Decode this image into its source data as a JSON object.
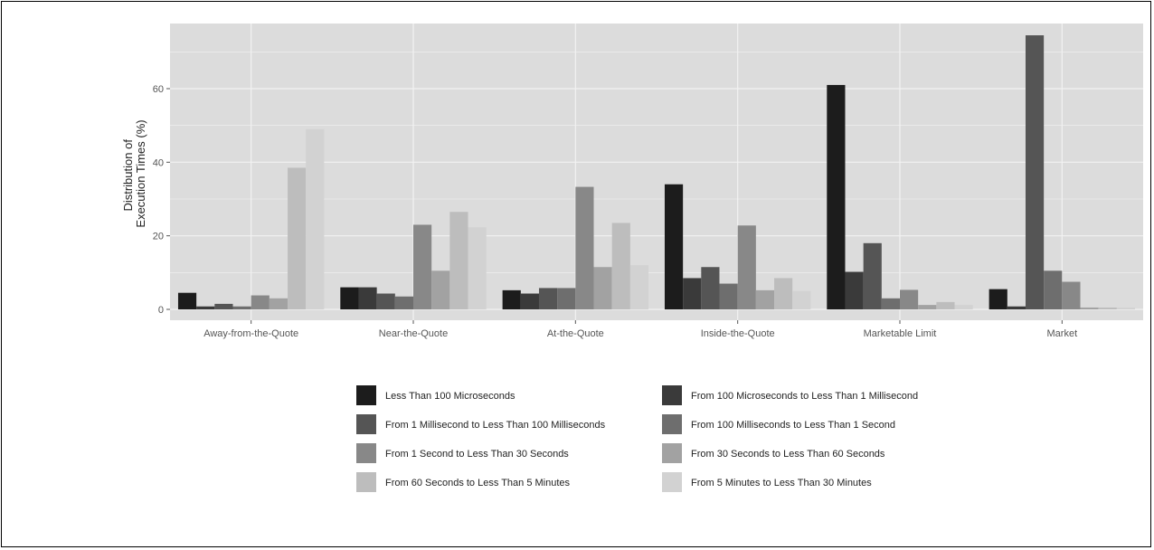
{
  "chart_data": {
    "type": "bar",
    "title": "",
    "ylabel_lines": [
      "Distribution of",
      "Execution Times (%)"
    ],
    "xlabel": "",
    "ylim": [
      0,
      80
    ],
    "yticks": [
      0,
      20,
      40,
      60
    ],
    "grid": true,
    "legend_position": "bottom",
    "categories": [
      "Away-from-the-Quote",
      "Near-the-Quote",
      "At-the-Quote",
      "Inside-the-Quote",
      "Marketable Limit",
      "Market"
    ],
    "series": [
      {
        "name": "Less Than 100 Microseconds",
        "color": "#1c1c1c",
        "values": [
          4.5,
          6.0,
          5.2,
          34.0,
          61.0,
          5.5
        ]
      },
      {
        "name": "From 100 Microseconds to Less Than 1 Millisecond",
        "color": "#3a3a3a",
        "values": [
          0.8,
          6.0,
          4.3,
          8.5,
          10.2,
          0.8
        ]
      },
      {
        "name": "From 1 Millisecond to Less Than 100 Milliseconds",
        "color": "#555555",
        "values": [
          1.5,
          4.3,
          5.8,
          11.5,
          18.0,
          74.5
        ]
      },
      {
        "name": "From 100 Milliseconds to Less Than 1 Second",
        "color": "#6e6e6e",
        "values": [
          0.8,
          3.5,
          5.8,
          7.0,
          3.0,
          10.5
        ]
      },
      {
        "name": "From 1 Second to Less Than 30 Seconds",
        "color": "#888888",
        "values": [
          3.8,
          23.0,
          33.3,
          22.8,
          5.3,
          7.5
        ]
      },
      {
        "name": "From 30 Seconds to Less Than 60 Seconds",
        "color": "#a2a2a2",
        "values": [
          3.0,
          10.5,
          11.5,
          5.2,
          1.2,
          0.5
        ]
      },
      {
        "name": "From 60 Seconds to Less Than 5 Minutes",
        "color": "#bdbdbd",
        "values": [
          38.5,
          26.5,
          23.5,
          8.5,
          2.0,
          0.5
        ]
      },
      {
        "name": "From 5 Minutes to Less Than 30 Minutes",
        "color": "#d2d2d2",
        "values": [
          49.0,
          22.3,
          12.0,
          5.0,
          1.2,
          0.5
        ]
      }
    ],
    "panel_color": "#dcdcdc",
    "grid_color": "#f2f2f2"
  }
}
